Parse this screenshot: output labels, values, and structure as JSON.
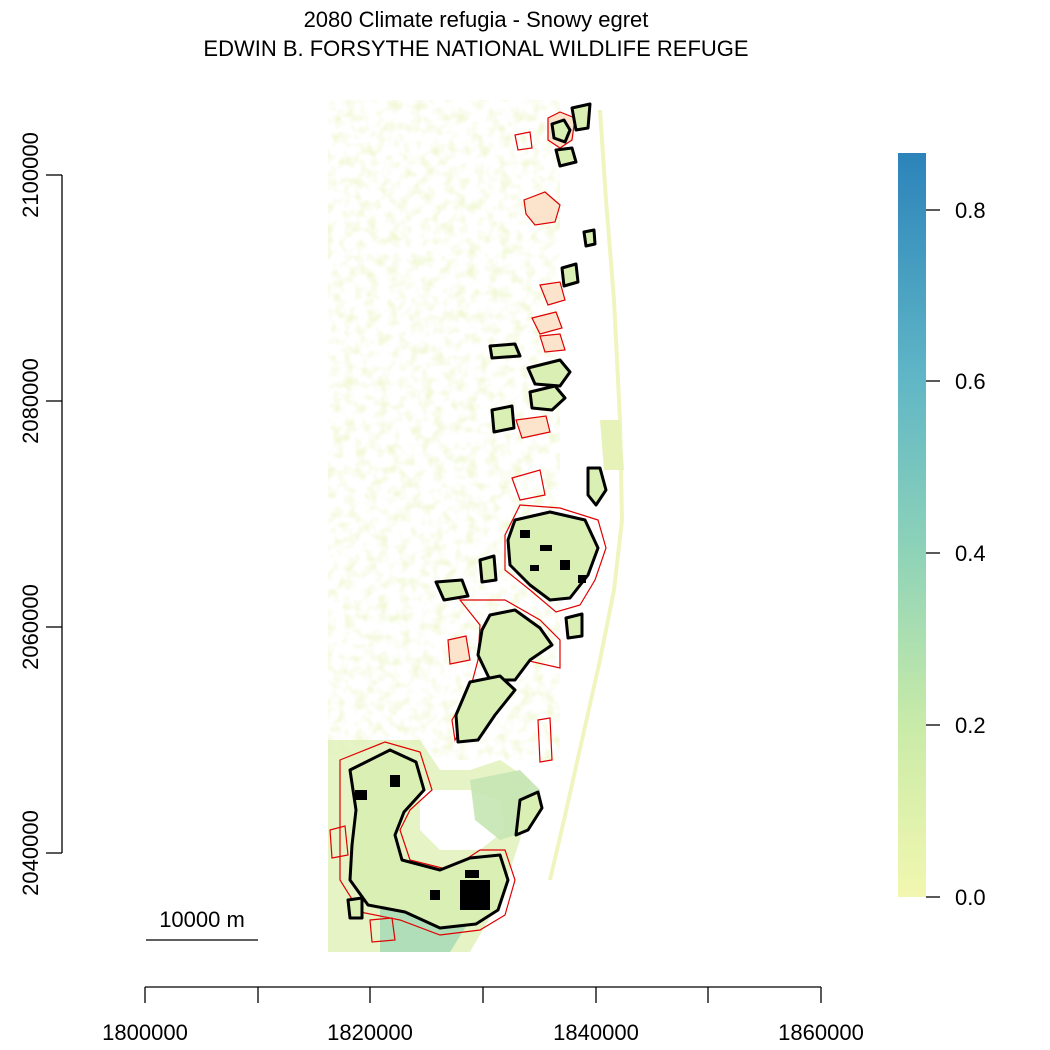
{
  "title": {
    "line1": "2080 Climate refugia - Snowy egret",
    "line2": "EDWIN B. FORSYTHE NATIONAL WILDLIFE REFUGE"
  },
  "x_axis": {
    "ticks": [
      1800000,
      1810000,
      1820000,
      1830000,
      1840000,
      1850000,
      1860000
    ],
    "labeled_ticks": [
      "1800000",
      "1820000",
      "1840000",
      "1860000"
    ]
  },
  "y_axis": {
    "ticks": [
      2040000,
      2060000,
      2080000,
      2100000
    ],
    "labeled_ticks": [
      "2040000",
      "2060000",
      "2080000",
      "2100000"
    ]
  },
  "legend": {
    "min": 0.0,
    "max": 0.86,
    "labels": [
      "0.0",
      "0.2",
      "0.4",
      "0.6",
      "0.8"
    ],
    "colors": [
      "#f2f7b0",
      "#c9eba8",
      "#8fd3b8",
      "#5fb6c6",
      "#2c83ba"
    ]
  },
  "scale_bar": {
    "label": "10000 m",
    "length_m": 10000
  },
  "colors": {
    "refuge_boundary": "#e00000",
    "refugia_outline": "#000000",
    "low_value": "#eef5b4"
  }
}
